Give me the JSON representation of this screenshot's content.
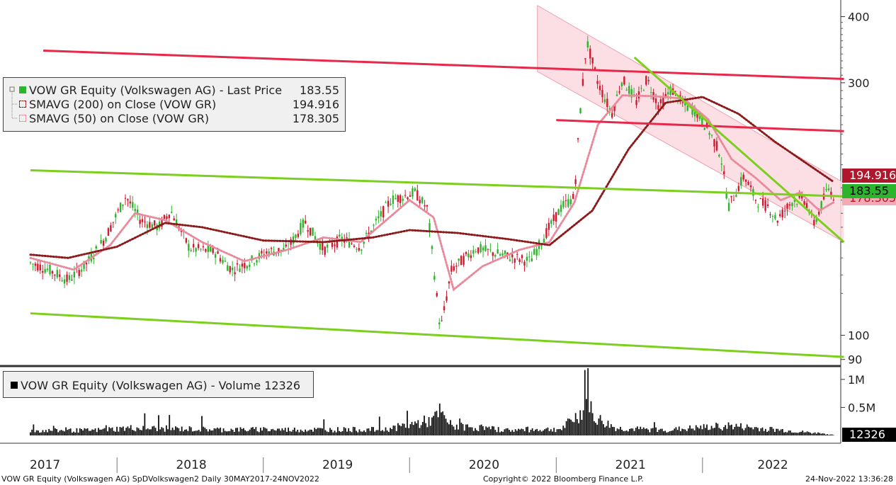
{
  "legend_price": {
    "rows": [
      {
        "name": "VOW GR Equity (Volkswagen AG) - Last Price",
        "value": "183.55",
        "color": "#2db42d"
      },
      {
        "name": "SMAVG (200)  on Close (VOW GR)",
        "value": "194.916",
        "color": "#8b1a1a"
      },
      {
        "name": "SMAVG (50)  on Close (VOW GR)",
        "value": "178.305",
        "color": "#e88a9c"
      }
    ]
  },
  "legend_volume": {
    "label": "VOW GR Equity (Volkswagen AG) - Volume 12326",
    "color": "#000000"
  },
  "price_tags": [
    {
      "text": "194.916",
      "bg": "#b0172d",
      "fg": "#ffffff"
    },
    {
      "text": "183.55",
      "bg": "#2db42d",
      "fg": "#000000"
    },
    {
      "text": "178.305",
      "bg": "#f4a9b5",
      "fg": "#b0172d"
    }
  ],
  "volume_tag": {
    "text": "12326",
    "bg": "#000000",
    "fg": "#ffffff"
  },
  "footer": {
    "left": "VOW GR Equity (Volkswagen AG) SpDVolkswagen2  Daily 30MAY2017-24NOV2022",
    "center": "Copyright© 2022 Bloomberg Finance L.P.",
    "right": "24-Nov-2022 13:36:28"
  },
  "chart_data": [
    {
      "type": "line",
      "scale": "log",
      "ylim": [
        88,
        430
      ],
      "y_ticks": [
        400,
        300,
        100,
        90
      ],
      "x_tick_labels": [
        "2017",
        "2018",
        "2019",
        "2020",
        "2021",
        "2022"
      ],
      "series": [
        {
          "name": "VOW GR Equity (Volkswagen AG) - Last Price",
          "color": "#2db42d",
          "points": [
            [
              "2017-05-30",
              137
            ],
            [
              "2017-07-15",
              133
            ],
            [
              "2017-09-01",
              127
            ],
            [
              "2017-10-15",
              136
            ],
            [
              "2017-12-01",
              152
            ],
            [
              "2018-01-23",
              183
            ],
            [
              "2018-03-01",
              165
            ],
            [
              "2018-04-15",
              160
            ],
            [
              "2018-05-15",
              172
            ],
            [
              "2018-07-01",
              146
            ],
            [
              "2018-09-01",
              144
            ],
            [
              "2018-10-15",
              133
            ],
            [
              "2018-12-01",
              138
            ],
            [
              "2019-01-15",
              144
            ],
            [
              "2019-03-01",
              145
            ],
            [
              "2019-04-15",
              164
            ],
            [
              "2019-06-01",
              145
            ],
            [
              "2019-07-15",
              152
            ],
            [
              "2019-09-01",
              147
            ],
            [
              "2019-11-15",
              180
            ],
            [
              "2020-01-15",
              186
            ],
            [
              "2020-02-15",
              173
            ],
            [
              "2020-03-18",
              102
            ],
            [
              "2020-04-15",
              133
            ],
            [
              "2020-06-15",
              146
            ],
            [
              "2020-08-15",
              142
            ],
            [
              "2020-10-28",
              138
            ],
            [
              "2020-12-15",
              160
            ],
            [
              "2021-01-15",
              175
            ],
            [
              "2021-02-15",
              182
            ],
            [
              "2021-03-01",
              260
            ],
            [
              "2021-03-18",
              360
            ],
            [
              "2021-04-15",
              300
            ],
            [
              "2021-05-20",
              262
            ],
            [
              "2021-06-15",
              305
            ],
            [
              "2021-07-20",
              276
            ],
            [
              "2021-08-15",
              305
            ],
            [
              "2021-09-15",
              270
            ],
            [
              "2021-10-15",
              292
            ],
            [
              "2021-11-15",
              272
            ],
            [
              "2021-12-15",
              265
            ],
            [
              "2022-01-15",
              245
            ],
            [
              "2022-02-15",
              220
            ],
            [
              "2022-03-07",
              175
            ],
            [
              "2022-04-15",
              200
            ],
            [
              "2022-05-15",
              180
            ],
            [
              "2022-06-15",
              175
            ],
            [
              "2022-07-05",
              165
            ],
            [
              "2022-08-15",
              180
            ],
            [
              "2022-09-15",
              180
            ],
            [
              "2022-10-05",
              162
            ],
            [
              "2022-10-20",
              172
            ],
            [
              "2022-11-10",
              190
            ],
            [
              "2022-11-24",
              183.55
            ]
          ]
        },
        {
          "name": "SMAVG (200)  on Close (VOW GR)",
          "color": "#8b1a1a",
          "points": [
            [
              "2017-05-30",
              142
            ],
            [
              "2017-09-01",
              140
            ],
            [
              "2018-01-01",
              147
            ],
            [
              "2018-05-01",
              163
            ],
            [
              "2018-08-01",
              160
            ],
            [
              "2019-01-01",
              151
            ],
            [
              "2019-06-01",
              150
            ],
            [
              "2019-10-01",
              153
            ],
            [
              "2020-01-01",
              158
            ],
            [
              "2020-05-01",
              156
            ],
            [
              "2020-09-01",
              152
            ],
            [
              "2020-12-15",
              148
            ],
            [
              "2021-04-01",
              172
            ],
            [
              "2021-07-01",
              225
            ],
            [
              "2021-10-01",
              275
            ],
            [
              "2022-01-01",
              282
            ],
            [
              "2022-04-01",
              262
            ],
            [
              "2022-07-01",
              232
            ],
            [
              "2022-11-24",
              194.916
            ]
          ]
        },
        {
          "name": "SMAVG (50)  on Close (VOW GR)",
          "color": "#e88a9c",
          "points": [
            [
              "2017-05-30",
              140
            ],
            [
              "2017-09-15",
              133
            ],
            [
              "2017-12-15",
              148
            ],
            [
              "2018-02-15",
              170
            ],
            [
              "2018-05-01",
              165
            ],
            [
              "2018-08-01",
              150
            ],
            [
              "2018-11-15",
              138
            ],
            [
              "2019-03-01",
              145
            ],
            [
              "2019-06-01",
              153
            ],
            [
              "2019-09-01",
              150
            ],
            [
              "2020-01-01",
              180
            ],
            [
              "2020-03-01",
              167
            ],
            [
              "2020-04-20",
              122
            ],
            [
              "2020-07-01",
              135
            ],
            [
              "2020-10-01",
              145
            ],
            [
              "2020-12-15",
              150
            ],
            [
              "2021-02-15",
              178
            ],
            [
              "2021-04-15",
              250
            ],
            [
              "2021-06-15",
              284
            ],
            [
              "2021-09-01",
              283
            ],
            [
              "2021-11-15",
              280
            ],
            [
              "2022-01-15",
              256
            ],
            [
              "2022-03-15",
              215
            ],
            [
              "2022-05-15",
              198
            ],
            [
              "2022-07-15",
              180
            ],
            [
              "2022-09-01",
              186
            ],
            [
              "2022-10-20",
              172
            ],
            [
              "2022-11-24",
              178.305
            ]
          ]
        }
      ],
      "annotations": {
        "red_lines": [
          {
            "start": [
              "2017-07-01",
              345
            ],
            "end": [
              "2022-12-20",
              305
            ]
          },
          {
            "start": [
              "2021-01-01",
              255
            ],
            "end": [
              "2022-12-20",
              243
            ]
          }
        ],
        "green_lines": [
          {
            "start": [
              "2017-05-30",
              205
            ],
            "end": [
              "2022-12-20",
              183
            ]
          },
          {
            "start": [
              "2017-05-30",
              110
            ],
            "end": [
              "2022-12-20",
              91
            ]
          },
          {
            "start": [
              "2021-07-15",
              335
            ],
            "end": [
              "2022-12-20",
              150
            ]
          }
        ],
        "channel": {
          "upper": [
            [
              "2020-11-15",
              420
            ],
            [
              "2022-12-20",
              194
            ]
          ],
          "lower": [
            [
              "2020-11-15",
              315
            ],
            [
              "2022-12-20",
              150
            ]
          ]
        }
      }
    },
    {
      "type": "bar",
      "ylim": [
        0,
        1200000
      ],
      "y_ticks": [
        1000000,
        500000
      ],
      "y_tick_labels": [
        "1M",
        "0.5M"
      ],
      "series": [
        {
          "name": "VOW GR Equity (Volkswagen AG) - Volume",
          "color": "#000000",
          "points": [
            [
              "2017-05-30",
              90000
            ],
            [
              "2017-11-01",
              95000
            ],
            [
              "2018-02-01",
              140000
            ],
            [
              "2018-10-01",
              110000
            ],
            [
              "2019-04-01",
              110000
            ],
            [
              "2019-11-01",
              110000
            ],
            [
              "2020-03-01",
              290000
            ],
            [
              "2020-03-15",
              430000
            ],
            [
              "2020-04-15",
              180000
            ],
            [
              "2020-09-01",
              100000
            ],
            [
              "2021-01-15",
              120000
            ],
            [
              "2021-03-15",
              500000
            ],
            [
              "2021-03-18",
              1100000
            ],
            [
              "2021-04-01",
              350000
            ],
            [
              "2021-06-01",
              130000
            ],
            [
              "2021-10-01",
              100000
            ],
            [
              "2022-03-07",
              180000
            ],
            [
              "2022-08-01",
              90000
            ],
            [
              "2022-11-24",
              12326
            ]
          ]
        }
      ]
    }
  ]
}
